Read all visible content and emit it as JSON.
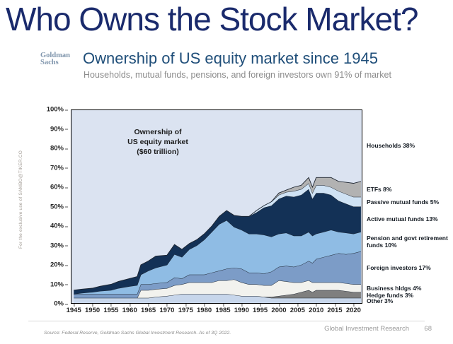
{
  "slide": {
    "title": "Who Owns the Stock Market?",
    "logo": {
      "line1": "Goldman",
      "line2": "Sachs"
    },
    "heading": "Ownership of US equity market since 1945",
    "subheading": "Households, mutual funds, pensions, and foreign investors own 91% of market",
    "watermark": "For the exclusive use of SAMBO@TIKER.CO",
    "footer": {
      "source": "Source: Federal Reserve, Goldman Sachs Global Investment Research. As of 3Q 2022.",
      "department": "Global Investment Research",
      "page": "68"
    }
  },
  "chart_data": {
    "type": "area",
    "stacked": true,
    "title": "Ownership of US equity market ($60 trillion)",
    "annotation_lines": [
      "Ownership of",
      "US equity market",
      "($60 trillion)"
    ],
    "xlabel": "",
    "ylabel": "",
    "ylim": [
      0,
      100
    ],
    "x_range": [
      1944.2,
      2022.4
    ],
    "grid": false,
    "legend_position": "right-annotations",
    "outline_color": "#1d2530",
    "border_color": "#000000",
    "y_ticks": [
      {
        "value": 0,
        "label": "0%"
      },
      {
        "value": 10,
        "label": "10%"
      },
      {
        "value": 20,
        "label": "20%"
      },
      {
        "value": 30,
        "label": "30%"
      },
      {
        "value": 40,
        "label": "40%"
      },
      {
        "value": 50,
        "label": "50%"
      },
      {
        "value": 60,
        "label": "60%"
      },
      {
        "value": 70,
        "label": "70%"
      },
      {
        "value": 80,
        "label": "80%"
      },
      {
        "value": 90,
        "label": "90%"
      },
      {
        "value": 100,
        "label": "100%"
      }
    ],
    "x_ticks": [
      1945,
      1950,
      1955,
      1960,
      1965,
      1970,
      1975,
      1980,
      1985,
      1990,
      1995,
      2000,
      2005,
      2010,
      2015,
      2020
    ],
    "x": [
      1945,
      1947,
      1950,
      1952,
      1955,
      1957,
      1960,
      1962,
      1963,
      1965,
      1967,
      1970,
      1972,
      1974,
      1976,
      1978,
      1980,
      1982,
      1984,
      1986,
      1988,
      1990,
      1992,
      1994,
      1996,
      1998,
      2000,
      2002,
      2004,
      2006,
      2008,
      2009,
      2010,
      2012,
      2014,
      2016,
      2018,
      2020,
      2022
    ],
    "background_series": {
      "id": "households",
      "name": "Households",
      "label": "Households 38%",
      "color": "#dbe3f1",
      "final_share_pct": 38
    },
    "series": [
      {
        "id": "other",
        "name": "Other",
        "label": "Other 3%",
        "final_share_pct": 3,
        "color": "#c7d6eb",
        "values": [
          3,
          3,
          3,
          3,
          3,
          3,
          3,
          3,
          3,
          3,
          3.5,
          4,
          4.5,
          5,
          5,
          5,
          5,
          5,
          5,
          5,
          4.5,
          4,
          4,
          4,
          3.5,
          3,
          3,
          3,
          3,
          3,
          3,
          3,
          3,
          3,
          3,
          3,
          3,
          3,
          3
        ]
      },
      {
        "id": "hedge-funds",
        "name": "Hedge funds",
        "label": "Hedge funds 3%",
        "final_share_pct": 3,
        "color": "#7f7f7f",
        "values": [
          0,
          0,
          0,
          0,
          0,
          0,
          0,
          0,
          0,
          0,
          0,
          0,
          0,
          0,
          0,
          0,
          0,
          0,
          0,
          0,
          0,
          0,
          0,
          0,
          0,
          0.5,
          1,
          1.5,
          2,
          3,
          4,
          3,
          4,
          4,
          4,
          4,
          3.5,
          3,
          3
        ]
      },
      {
        "id": "business-hldgs",
        "name": "Business hldgs",
        "label": "Business hldgs 4%",
        "final_share_pct": 4,
        "color": "#f2f2ee",
        "values": [
          0,
          0,
          0,
          0,
          0,
          0,
          0,
          0,
          4,
          4,
          4,
          4,
          5,
          5,
          6,
          6,
          6,
          6,
          7,
          7,
          8,
          7,
          6,
          6,
          6,
          6,
          8,
          7,
          6,
          5,
          5,
          5,
          4,
          4,
          4,
          4,
          4,
          4,
          4
        ]
      },
      {
        "id": "foreign-investors",
        "name": "Foreign investors",
        "label": "Foreign investors 17%",
        "final_share_pct": 17,
        "color": "#7c9cc7",
        "values": [
          2,
          2,
          2,
          2,
          2,
          2,
          2,
          2,
          3,
          3,
          3,
          3,
          4,
          3,
          4,
          4,
          4,
          5,
          5,
          6,
          6,
          7,
          6,
          6,
          6,
          7,
          7,
          8,
          8,
          9,
          10,
          10,
          12,
          13,
          14,
          15,
          15,
          16,
          17
        ]
      },
      {
        "id": "pension-govt-retirement-funds",
        "name": "Pension and govt retirement funds",
        "label": "Pension and govt retirement funds 10%",
        "final_share_pct": 10,
        "color": "#8fbce4",
        "values": [
          0,
          0.5,
          1,
          1.5,
          2,
          3,
          4,
          4.5,
          5,
          7,
          8,
          9,
          12,
          11,
          13,
          15,
          18,
          21,
          24,
          25,
          21,
          20,
          20,
          20,
          20,
          18,
          17,
          17,
          16,
          15,
          15,
          14,
          13,
          13,
          13,
          11,
          11,
          10,
          10
        ]
      },
      {
        "id": "active-mutual-funds",
        "name": "Active mutual funds",
        "label": "Active mutual funds 13%",
        "final_share_pct": 13,
        "color": "#133156",
        "values": [
          2,
          2,
          2,
          2.5,
          3,
          3.5,
          4,
          4.5,
          5,
          5,
          6,
          5,
          5,
          4,
          3,
          3,
          3,
          3,
          4,
          5,
          6,
          7,
          9,
          11,
          14,
          16,
          18,
          19,
          20,
          21,
          22,
          19,
          21,
          20,
          18,
          16,
          15,
          14,
          13
        ]
      },
      {
        "id": "passive-mutual-funds",
        "name": "Passive mutual funds",
        "label": "Passive mutual funds 5%",
        "final_share_pct": 5,
        "color": "#cfe2f4",
        "values": [
          0,
          0,
          0,
          0,
          0,
          0,
          0,
          0,
          0,
          0,
          0,
          0,
          0,
          0,
          0,
          0,
          0,
          0,
          0,
          0,
          0,
          0,
          0,
          1,
          1,
          2,
          2,
          2,
          3,
          3,
          3,
          3,
          4,
          4,
          4,
          5,
          5,
          5,
          5
        ]
      },
      {
        "id": "etfs",
        "name": "ETFs",
        "label": "ETFs 8%",
        "final_share_pct": 8,
        "color": "#b2b2b2",
        "values": [
          0,
          0,
          0,
          0,
          0,
          0,
          0,
          0,
          0,
          0,
          0,
          0,
          0,
          0,
          0,
          0,
          0,
          0,
          0,
          0,
          0,
          0,
          0,
          0,
          0,
          0,
          1,
          1,
          2,
          2,
          3,
          3,
          4,
          4,
          5,
          5,
          6,
          7,
          8
        ]
      }
    ]
  }
}
